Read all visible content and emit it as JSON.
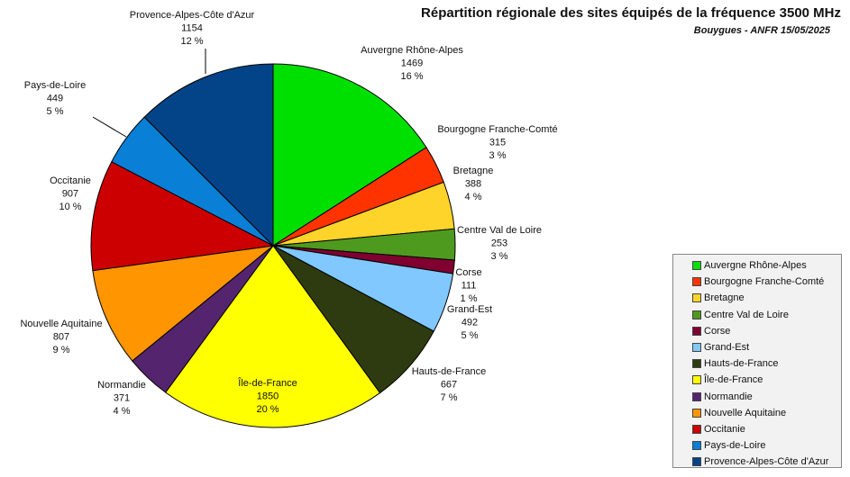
{
  "title": "Répartition régionale des sites équipés de la fréquence 3500 MHz",
  "subtitle": "Bouygues - ANFR 15/05/2025",
  "chart_data": {
    "type": "pie",
    "slices": [
      {
        "label": "Auvergne Rhône-Alpes",
        "value": 1469,
        "percent": "16 %",
        "color": "#00e000"
      },
      {
        "label": "Bourgogne Franche-Comté",
        "value": 315,
        "percent": "3 %",
        "color": "#ff3300"
      },
      {
        "label": "Bretagne",
        "value": 388,
        "percent": "4 %",
        "color": "#ffd42a"
      },
      {
        "label": "Centre Val de Loire",
        "value": 253,
        "percent": "3 %",
        "color": "#4d9a1f"
      },
      {
        "label": "Corse",
        "value": 111,
        "percent": "1 %",
        "color": "#800030"
      },
      {
        "label": "Grand-Est",
        "value": 492,
        "percent": "5 %",
        "color": "#80c8ff"
      },
      {
        "label": "Hauts-de-France",
        "value": 667,
        "percent": "7 %",
        "color": "#2e3b10"
      },
      {
        "label": "Île-de-France",
        "value": 1850,
        "percent": "20 %",
        "color": "#ffff00"
      },
      {
        "label": "Normandie",
        "value": 371,
        "percent": "4 %",
        "color": "#55246e"
      },
      {
        "label": "Nouvelle Aquitaine",
        "value": 807,
        "percent": "9 %",
        "color": "#ff9500"
      },
      {
        "label": "Occitanie",
        "value": 907,
        "percent": "10 %",
        "color": "#cc0000"
      },
      {
        "label": "Pays-de-Loire",
        "value": 449,
        "percent": "5 %",
        "color": "#0a7fd6"
      },
      {
        "label": "Provence-Alpes-Côte d'Azur",
        "value": 1154,
        "percent": "12 %",
        "color": "#034488"
      }
    ],
    "legend_placement": "bottom-right"
  }
}
